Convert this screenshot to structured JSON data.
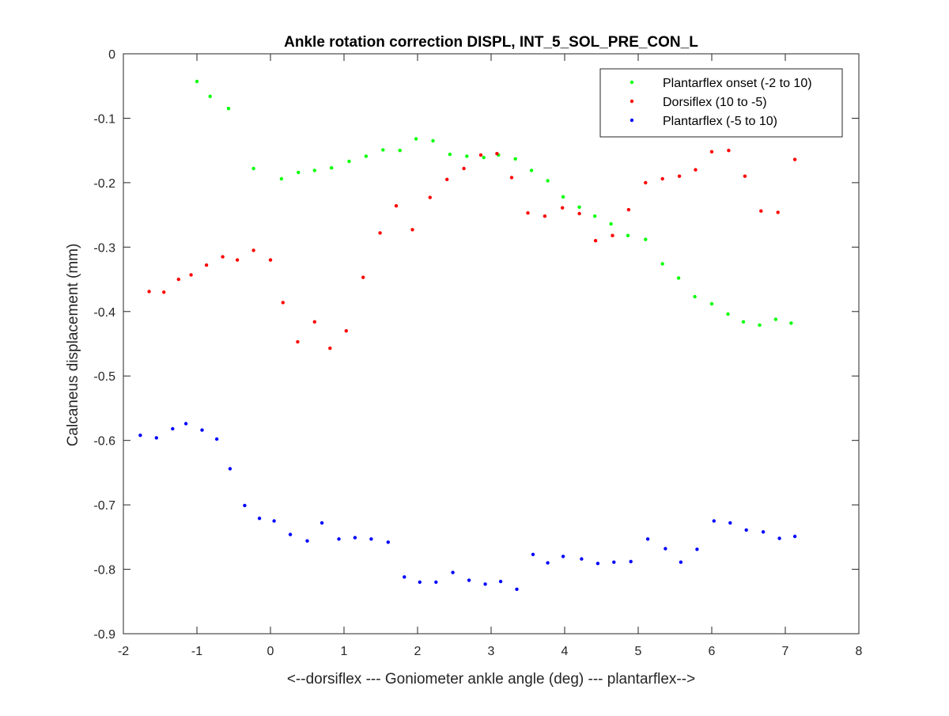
{
  "chart_data": {
    "type": "scatter",
    "title": "Ankle rotation correction DISPL, INT_5_SOL_PRE_CON_L",
    "xlabel": "<--dorsiflex --- Goniometer ankle angle (deg) --- plantarflex-->",
    "ylabel": "Calcaneus displacement (mm)",
    "xlim": [
      -2,
      8
    ],
    "ylim": [
      -0.9,
      0
    ],
    "xticks": [
      -2,
      -1,
      0,
      1,
      2,
      3,
      4,
      5,
      6,
      7,
      8
    ],
    "yticks": [
      0,
      -0.1,
      -0.2,
      -0.3,
      -0.4,
      -0.5,
      -0.6,
      -0.7,
      -0.8,
      -0.9
    ],
    "grid": false,
    "legend_position": "top-right",
    "series": [
      {
        "name": "Plantarflex onset (-2 to 10)",
        "color": "#00ff00",
        "x": [
          -1.0,
          -0.82,
          -0.57,
          -0.23,
          0.15,
          0.38,
          0.6,
          0.83,
          1.07,
          1.3,
          1.53,
          1.76,
          1.98,
          2.21,
          2.44,
          2.67,
          2.9,
          3.1,
          3.33,
          3.55,
          3.77,
          3.98,
          4.2,
          4.41,
          4.63,
          4.86,
          5.1,
          5.33,
          5.55,
          5.77,
          6.0,
          6.22,
          6.43,
          6.65,
          6.87,
          7.08
        ],
        "y": [
          -0.043,
          -0.066,
          -0.085,
          -0.178,
          -0.194,
          -0.184,
          -0.181,
          -0.177,
          -0.167,
          -0.159,
          -0.149,
          -0.15,
          -0.132,
          -0.135,
          -0.156,
          -0.159,
          -0.161,
          -0.157,
          -0.163,
          -0.181,
          -0.197,
          -0.222,
          -0.238,
          -0.252,
          -0.264,
          -0.282,
          -0.288,
          -0.326,
          -0.348,
          -0.377,
          -0.388,
          -0.404,
          -0.416,
          -0.421,
          -0.412,
          -0.418
        ]
      },
      {
        "name": "Dorsiflex (10 to -5)",
        "color": "#ff0000",
        "x": [
          7.13,
          6.9,
          6.67,
          6.45,
          6.23,
          6.0,
          5.78,
          5.56,
          5.33,
          5.1,
          4.87,
          4.65,
          4.42,
          4.2,
          3.97,
          3.73,
          3.5,
          3.28,
          3.08,
          2.86,
          2.63,
          2.4,
          2.17,
          1.93,
          1.71,
          1.49,
          1.26,
          1.03,
          0.81,
          0.6,
          0.37,
          0.17,
          0.0,
          -0.23,
          -0.45,
          -0.65,
          -0.87,
          -1.08,
          -1.25,
          -1.45,
          -1.65
        ],
        "y": [
          -0.164,
          -0.246,
          -0.244,
          -0.19,
          -0.15,
          -0.152,
          -0.18,
          -0.19,
          -0.194,
          -0.2,
          -0.242,
          -0.282,
          -0.29,
          -0.248,
          -0.239,
          -0.252,
          -0.247,
          -0.192,
          -0.155,
          -0.157,
          -0.178,
          -0.195,
          -0.223,
          -0.273,
          -0.236,
          -0.278,
          -0.347,
          -0.43,
          -0.457,
          -0.416,
          -0.447,
          -0.386,
          -0.32,
          -0.305,
          -0.32,
          -0.315,
          -0.328,
          -0.343,
          -0.35,
          -0.37,
          -0.369
        ]
      },
      {
        "name": "Plantarflex (-5 to 10)",
        "color": "#0000ff",
        "x": [
          -1.77,
          -1.55,
          -1.33,
          -1.15,
          -0.93,
          -0.73,
          -0.55,
          -0.35,
          -0.15,
          0.05,
          0.27,
          0.5,
          0.7,
          0.93,
          1.15,
          1.37,
          1.6,
          1.82,
          2.03,
          2.25,
          2.48,
          2.7,
          2.92,
          3.13,
          3.35,
          3.57,
          3.77,
          3.98,
          4.23,
          4.45,
          4.67,
          4.9,
          5.13,
          5.37,
          5.58,
          5.8,
          6.03,
          6.25,
          6.47,
          6.7,
          6.92,
          7.13
        ],
        "y": [
          -0.592,
          -0.596,
          -0.582,
          -0.574,
          -0.584,
          -0.598,
          -0.644,
          -0.701,
          -0.721,
          -0.725,
          -0.746,
          -0.756,
          -0.728,
          -0.753,
          -0.751,
          -0.753,
          -0.758,
          -0.812,
          -0.82,
          -0.82,
          -0.805,
          -0.817,
          -0.823,
          -0.819,
          -0.831,
          -0.777,
          -0.79,
          -0.78,
          -0.784,
          -0.791,
          -0.789,
          -0.788,
          -0.753,
          -0.768,
          -0.789,
          -0.769,
          -0.725,
          -0.728,
          -0.739,
          -0.742,
          -0.752,
          -0.749
        ]
      }
    ]
  }
}
